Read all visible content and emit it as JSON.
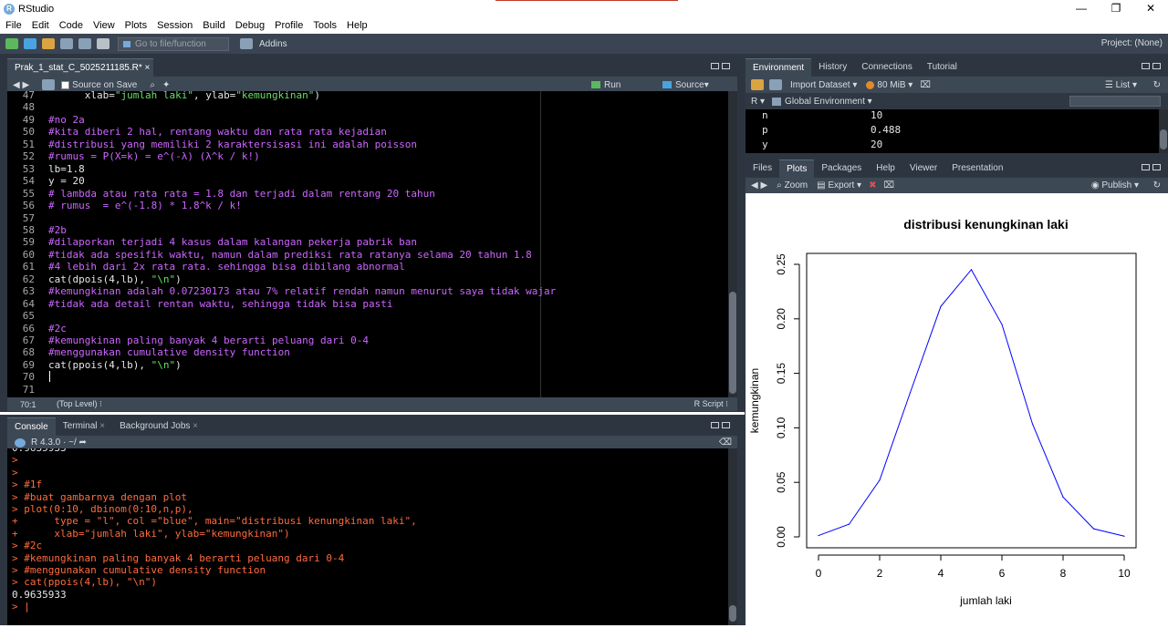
{
  "window": {
    "title": "RStudio",
    "min": "—",
    "max": "❐",
    "close": "✕"
  },
  "menu": [
    "File",
    "Edit",
    "Code",
    "View",
    "Plots",
    "Session",
    "Build",
    "Debug",
    "Profile",
    "Tools",
    "Help"
  ],
  "toolbar": {
    "goto_placeholder": "Go to file/function",
    "addins": "Addins",
    "project": "Project: (None)"
  },
  "editor": {
    "tab_name": "Prak_1_stat_C_5025211185.R*",
    "source_on_save": "Source on Save",
    "run": "Run",
    "source": "Source",
    "status_pos": "70:1",
    "status_level": "(Top Level)",
    "status_type": "R Script",
    "lines": [
      {
        "n": "47",
        "t": "      xlab=\"jumlah laki\", ylab=\"kemungkinan\")",
        "k": "code"
      },
      {
        "n": "48",
        "t": "",
        "k": "code"
      },
      {
        "n": "49",
        "t": "#no 2a",
        "k": "com"
      },
      {
        "n": "50",
        "t": "#kita diberi 2 hal, rentang waktu dan rata rata kejadian",
        "k": "com"
      },
      {
        "n": "51",
        "t": "#distribusi yang memiliki 2 karaktersisasi ini adalah poisson",
        "k": "com"
      },
      {
        "n": "52",
        "t": "#rumus = P(X=k) = e^(-λ) (λ^k / k!)",
        "k": "com"
      },
      {
        "n": "53",
        "t": "lb=1.8",
        "k": "code"
      },
      {
        "n": "54",
        "t": "y = 20",
        "k": "code"
      },
      {
        "n": "55",
        "t": "# lambda atau rata rata = 1.8 dan terjadi dalam rentang 20 tahun",
        "k": "com"
      },
      {
        "n": "56",
        "t": "# rumus  = e^(-1.8) * 1.8^k / k!",
        "k": "com"
      },
      {
        "n": "57",
        "t": "",
        "k": "code"
      },
      {
        "n": "58",
        "t": "#2b",
        "k": "com"
      },
      {
        "n": "59",
        "t": "#dilaporkan terjadi 4 kasus dalam kalangan pekerja pabrik ban",
        "k": "com"
      },
      {
        "n": "60",
        "t": "#tidak ada spesifik waktu, namun dalam prediksi rata ratanya selama 20 tahun 1.8",
        "k": "com"
      },
      {
        "n": "61",
        "t": "#4 lebih dari 2x rata rata. sehingga bisa dibilang abnormal",
        "k": "com"
      },
      {
        "n": "62",
        "t": "cat(dpois(4,lb), \"\\n\")",
        "k": "code"
      },
      {
        "n": "63",
        "t": "#kemungkinan adalah 0.07230173 atau 7% relatif rendah namun menurut saya tidak wajar",
        "k": "com"
      },
      {
        "n": "64",
        "t": "#tidak ada detail rentan waktu, sehingga tidak bisa pasti",
        "k": "com"
      },
      {
        "n": "65",
        "t": "",
        "k": "code"
      },
      {
        "n": "66",
        "t": "#2c",
        "k": "com"
      },
      {
        "n": "67",
        "t": "#kemungkinan paling banyak 4 berarti peluang dari 0-4",
        "k": "com"
      },
      {
        "n": "68",
        "t": "#menggunakan cumulative density function",
        "k": "com"
      },
      {
        "n": "69",
        "t": "cat(ppois(4,lb), \"\\n\")",
        "k": "code"
      },
      {
        "n": "70",
        "t": "",
        "k": "code"
      },
      {
        "n": "71",
        "t": "",
        "k": "code"
      }
    ]
  },
  "console": {
    "tabs": [
      "Console",
      "Terminal",
      "Background Jobs"
    ],
    "r_version": "R 4.3.0 · ~/",
    "lines": [
      {
        "t": "0.9635933",
        "k": "out"
      },
      {
        "t": ">",
        "k": "prompt"
      },
      {
        "t": ">",
        "k": "prompt"
      },
      {
        "t": "> #1f",
        "k": "prompt"
      },
      {
        "t": "> #buat gambarnya dengan plot",
        "k": "prompt"
      },
      {
        "t": "> plot(0:10, dbinom(0:10,n,p),",
        "k": "prompt"
      },
      {
        "t": "+      type = \"l\", col =\"blue\", main=\"distribusi kenungkinan laki\",",
        "k": "prompt"
      },
      {
        "t": "+      xlab=\"jumlah laki\", ylab=\"kemungkinan\")",
        "k": "prompt"
      },
      {
        "t": "> #2c",
        "k": "prompt"
      },
      {
        "t": "> #kemungkinan paling banyak 4 berarti peluang dari 0-4",
        "k": "prompt"
      },
      {
        "t": "> #menggunakan cumulative density function",
        "k": "prompt"
      },
      {
        "t": "> cat(ppois(4,lb), \"\\n\")",
        "k": "prompt"
      },
      {
        "t": "0.9635933",
        "k": "out"
      },
      {
        "t": "> |",
        "k": "prompt"
      }
    ]
  },
  "env": {
    "tabs": [
      "Environment",
      "History",
      "Connections",
      "Tutorial"
    ],
    "import": "Import Dataset",
    "mem": "80 MiB",
    "list": "List",
    "r_label": "R",
    "global": "Global Environment",
    "vars": [
      {
        "name": "n",
        "value": "10"
      },
      {
        "name": "p",
        "value": "0.488"
      },
      {
        "name": "y",
        "value": "20"
      }
    ]
  },
  "plots": {
    "tabs": [
      "Files",
      "Plots",
      "Packages",
      "Help",
      "Viewer",
      "Presentation"
    ],
    "zoom": "Zoom",
    "export": "Export",
    "publish": "Publish"
  },
  "chart_data": {
    "type": "line",
    "title": "distribusi kenungkinan laki",
    "xlabel": "jumlah laki",
    "ylabel": "kemungkinan",
    "x": [
      0,
      1,
      2,
      3,
      4,
      5,
      6,
      7,
      8,
      9,
      10
    ],
    "series": [
      {
        "values": [
          0.0012,
          0.0116,
          0.052,
          0.1323,
          0.2114,
          0.2451,
          0.1949,
          0.1036,
          0.0365,
          0.0074,
          0.0006
        ],
        "color": "#0000ff"
      }
    ],
    "xlim": [
      0,
      10
    ],
    "ylim": [
      0,
      0.25
    ],
    "xticks": [
      "0",
      "2",
      "4",
      "6",
      "8",
      "10"
    ],
    "yticks": [
      "0.00",
      "0.05",
      "0.10",
      "0.15",
      "0.20",
      "0.25"
    ]
  }
}
